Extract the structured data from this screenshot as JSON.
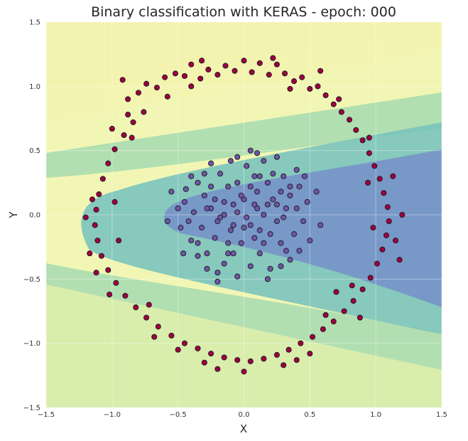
{
  "chart_data": {
    "type": "scatter",
    "title": "Binary classification with KERAS - epoch: 000",
    "xlabel": "X",
    "ylabel": "Y",
    "xlim": [
      -1.5,
      1.5
    ],
    "ylim": [
      -1.5,
      1.5
    ],
    "xticks": [
      "−1.5",
      "−1.0",
      "−0.5",
      "0.0",
      "0.5",
      "1.0",
      "1.5"
    ],
    "yticks": [
      "−1.5",
      "−1.0",
      "−0.5",
      "0.0",
      "0.5",
      "1.0",
      "1.5"
    ],
    "grid": true,
    "background": {
      "type": "decision-contour",
      "colormap": "Spectral",
      "description_colors": [
        "#ef7b70",
        "#fbb077",
        "#fde38c",
        "#f1f6b4",
        "#d5ecab",
        "#a8dcb0",
        "#78c3bd",
        "#7692c9"
      ]
    },
    "series": [
      {
        "class": 0,
        "color": "#9e0142",
        "shape": "outer-ring",
        "points": [
          [
            -0.92,
            1.05
          ],
          [
            -0.88,
            0.9
          ],
          [
            -0.8,
            0.95
          ],
          [
            -0.74,
            1.02
          ],
          [
            -0.66,
            0.99
          ],
          [
            -0.6,
            1.07
          ],
          [
            -0.52,
            1.1
          ],
          [
            -0.45,
            1.08
          ],
          [
            -0.4,
            1.17
          ],
          [
            -0.33,
            1.06
          ],
          [
            -0.27,
            1.13
          ],
          [
            -0.2,
            1.09
          ],
          [
            -0.14,
            1.16
          ],
          [
            -0.07,
            1.12
          ],
          [
            0.0,
            1.2
          ],
          [
            0.06,
            1.11
          ],
          [
            0.12,
            1.18
          ],
          [
            0.19,
            1.09
          ],
          [
            0.25,
            1.17
          ],
          [
            0.31,
            1.1
          ],
          [
            0.38,
            1.04
          ],
          [
            0.44,
            1.07
          ],
          [
            0.5,
            0.98
          ],
          [
            0.56,
            1.0
          ],
          [
            0.62,
            0.93
          ],
          [
            0.68,
            0.86
          ],
          [
            0.74,
            0.8
          ],
          [
            0.8,
            0.74
          ],
          [
            0.85,
            0.66
          ],
          [
            0.9,
            0.58
          ],
          [
            0.95,
            0.48
          ],
          [
            0.99,
            0.38
          ],
          [
            1.03,
            0.28
          ],
          [
            1.06,
            0.17
          ],
          [
            1.09,
            0.06
          ],
          [
            1.1,
            -0.05
          ],
          [
            1.08,
            -0.16
          ],
          [
            1.05,
            -0.27
          ],
          [
            1.01,
            -0.38
          ],
          [
            0.96,
            -0.49
          ],
          [
            0.9,
            -0.58
          ],
          [
            0.83,
            -0.67
          ],
          [
            0.76,
            -0.75
          ],
          [
            0.68,
            -0.83
          ],
          [
            0.6,
            -0.89
          ],
          [
            0.52,
            -0.95
          ],
          [
            0.43,
            -1.0
          ],
          [
            0.34,
            -1.05
          ],
          [
            0.25,
            -1.09
          ],
          [
            0.15,
            -1.12
          ],
          [
            0.05,
            -1.14
          ],
          [
            -0.05,
            -1.13
          ],
          [
            -0.15,
            -1.11
          ],
          [
            -0.25,
            -1.08
          ],
          [
            -0.35,
            -1.04
          ],
          [
            -0.45,
            -1.0
          ],
          [
            -0.55,
            -0.94
          ],
          [
            -0.65,
            -0.87
          ],
          [
            -0.74,
            -0.8
          ],
          [
            -0.82,
            -0.72
          ],
          [
            -0.9,
            -0.63
          ],
          [
            -0.97,
            -0.53
          ],
          [
            -1.03,
            -0.43
          ],
          [
            -1.08,
            -0.32
          ],
          [
            -1.11,
            -0.2
          ],
          [
            -1.13,
            -0.08
          ],
          [
            -1.12,
            0.04
          ],
          [
            -1.1,
            0.16
          ],
          [
            -1.07,
            0.28
          ],
          [
            -1.03,
            0.4
          ],
          [
            -0.98,
            0.51
          ],
          [
            -0.91,
            0.62
          ],
          [
            -0.84,
            0.72
          ],
          [
            -0.76,
            0.8
          ],
          [
            -1.0,
            0.67
          ],
          [
            -1.15,
            0.12
          ],
          [
            -1.2,
            -0.02
          ],
          [
            -1.17,
            -0.3
          ],
          [
            -1.12,
            -0.45
          ],
          [
            1.15,
            -0.2
          ],
          [
            1.2,
            0.0
          ],
          [
            1.18,
            -0.35
          ],
          [
            1.13,
            0.3
          ],
          [
            0.62,
            -0.78
          ],
          [
            0.4,
            -1.13
          ],
          [
            0.3,
            -1.17
          ],
          [
            -0.3,
            -1.15
          ],
          [
            -0.2,
            -1.2
          ],
          [
            0.0,
            -1.22
          ],
          [
            -0.58,
            0.92
          ],
          [
            0.58,
            1.12
          ],
          [
            0.72,
            0.9
          ],
          [
            -1.02,
            -0.62
          ],
          [
            -0.68,
            -0.95
          ],
          [
            0.82,
            -0.55
          ],
          [
            0.95,
            0.6
          ],
          [
            -0.32,
            1.2
          ],
          [
            0.22,
            1.22
          ],
          [
            -0.85,
            0.6
          ],
          [
            -0.95,
            -0.2
          ],
          [
            -0.98,
            0.1
          ],
          [
            0.98,
            -0.1
          ],
          [
            0.94,
            0.25
          ],
          [
            -0.5,
            -1.05
          ],
          [
            0.5,
            -1.08
          ],
          [
            -0.72,
            -0.7
          ],
          [
            0.7,
            -0.6
          ],
          [
            -0.4,
            1.0
          ],
          [
            0.35,
            0.98
          ],
          [
            0.88,
            -0.8
          ],
          [
            -0.88,
            0.78
          ]
        ]
      },
      {
        "class": 1,
        "color": "#6f55a6",
        "shape": "inner-cluster",
        "points": [
          [
            -0.3,
            0.15
          ],
          [
            -0.25,
            0.05
          ],
          [
            -0.2,
            -0.05
          ],
          [
            -0.15,
            0.1
          ],
          [
            -0.1,
            -0.12
          ],
          [
            -0.05,
            0.02
          ],
          [
            0.0,
            0.12
          ],
          [
            0.05,
            -0.08
          ],
          [
            0.1,
            0.18
          ],
          [
            0.15,
            0.0
          ],
          [
            0.2,
            -0.15
          ],
          [
            0.25,
            0.08
          ],
          [
            0.3,
            -0.02
          ],
          [
            0.35,
            0.15
          ],
          [
            0.28,
            -0.22
          ],
          [
            0.18,
            0.25
          ],
          [
            0.08,
            0.3
          ],
          [
            -0.02,
            -0.22
          ],
          [
            -0.12,
            0.22
          ],
          [
            -0.22,
            -0.18
          ],
          [
            -0.32,
            -0.1
          ],
          [
            -0.38,
            0.02
          ],
          [
            -0.35,
            0.25
          ],
          [
            -0.28,
            -0.3
          ],
          [
            -0.18,
            0.32
          ],
          [
            -0.08,
            -0.3
          ],
          [
            0.02,
            0.38
          ],
          [
            0.12,
            -0.3
          ],
          [
            0.22,
            0.32
          ],
          [
            0.32,
            -0.28
          ],
          [
            0.4,
            0.05
          ],
          [
            0.38,
            -0.15
          ],
          [
            0.42,
            0.22
          ],
          [
            0.45,
            -0.05
          ],
          [
            -0.45,
            0.1
          ],
          [
            -0.42,
            -0.05
          ],
          [
            -0.4,
            -0.2
          ],
          [
            -0.44,
            0.2
          ],
          [
            -0.15,
            -0.38
          ],
          [
            0.05,
            -0.4
          ],
          [
            0.15,
            0.42
          ],
          [
            -0.05,
            0.45
          ],
          [
            0.25,
            0.45
          ],
          [
            -0.25,
            0.4
          ],
          [
            0.3,
            0.3
          ],
          [
            -0.3,
            0.32
          ],
          [
            0.1,
            0.05
          ],
          [
            -0.08,
            0.08
          ],
          [
            0.02,
            -0.02
          ],
          [
            0.12,
            -0.12
          ],
          [
            -0.18,
            -0.02
          ],
          [
            0.22,
            0.12
          ],
          [
            -0.12,
            -0.22
          ],
          [
            0.32,
            0.05
          ],
          [
            -0.05,
            0.25
          ],
          [
            0.05,
            0.22
          ],
          [
            0.15,
            -0.22
          ],
          [
            -0.22,
            0.12
          ],
          [
            0.35,
            -0.35
          ],
          [
            -0.35,
            -0.32
          ],
          [
            0.4,
            0.35
          ],
          [
            -0.4,
            0.3
          ],
          [
            0.48,
            0.1
          ],
          [
            -0.48,
            -0.1
          ],
          [
            0.05,
            0.5
          ],
          [
            -0.05,
            -0.48
          ],
          [
            0.2,
            -0.42
          ],
          [
            -0.2,
            -0.45
          ],
          [
            0.5,
            -0.2
          ],
          [
            -0.5,
            0.05
          ],
          [
            -0.55,
            0.18
          ],
          [
            0.55,
            0.18
          ],
          [
            0.46,
            0.3
          ],
          [
            -0.46,
            -0.3
          ],
          [
            0.1,
            0.48
          ],
          [
            -0.1,
            0.42
          ],
          [
            0.28,
            -0.4
          ],
          [
            -0.28,
            -0.42
          ],
          [
            0.18,
            0.08
          ],
          [
            -0.02,
            0.15
          ],
          [
            0.08,
            -0.18
          ],
          [
            -0.15,
            0.0
          ],
          [
            0.25,
            -0.05
          ],
          [
            -0.25,
            0.22
          ],
          [
            0.35,
            0.22
          ],
          [
            -0.35,
            -0.22
          ],
          [
            0.12,
            0.3
          ],
          [
            -0.12,
            -0.3
          ],
          [
            0.0,
            -0.1
          ],
          [
            0.42,
            -0.28
          ],
          [
            -0.58,
            -0.05
          ],
          [
            0.58,
            -0.08
          ],
          [
            -0.2,
            -0.52
          ],
          [
            0.18,
            -0.5
          ],
          [
            -0.28,
            0.05
          ],
          [
            0.28,
            0.18
          ],
          [
            -0.08,
            -0.08
          ],
          [
            0.08,
            0.08
          ]
        ]
      }
    ]
  }
}
